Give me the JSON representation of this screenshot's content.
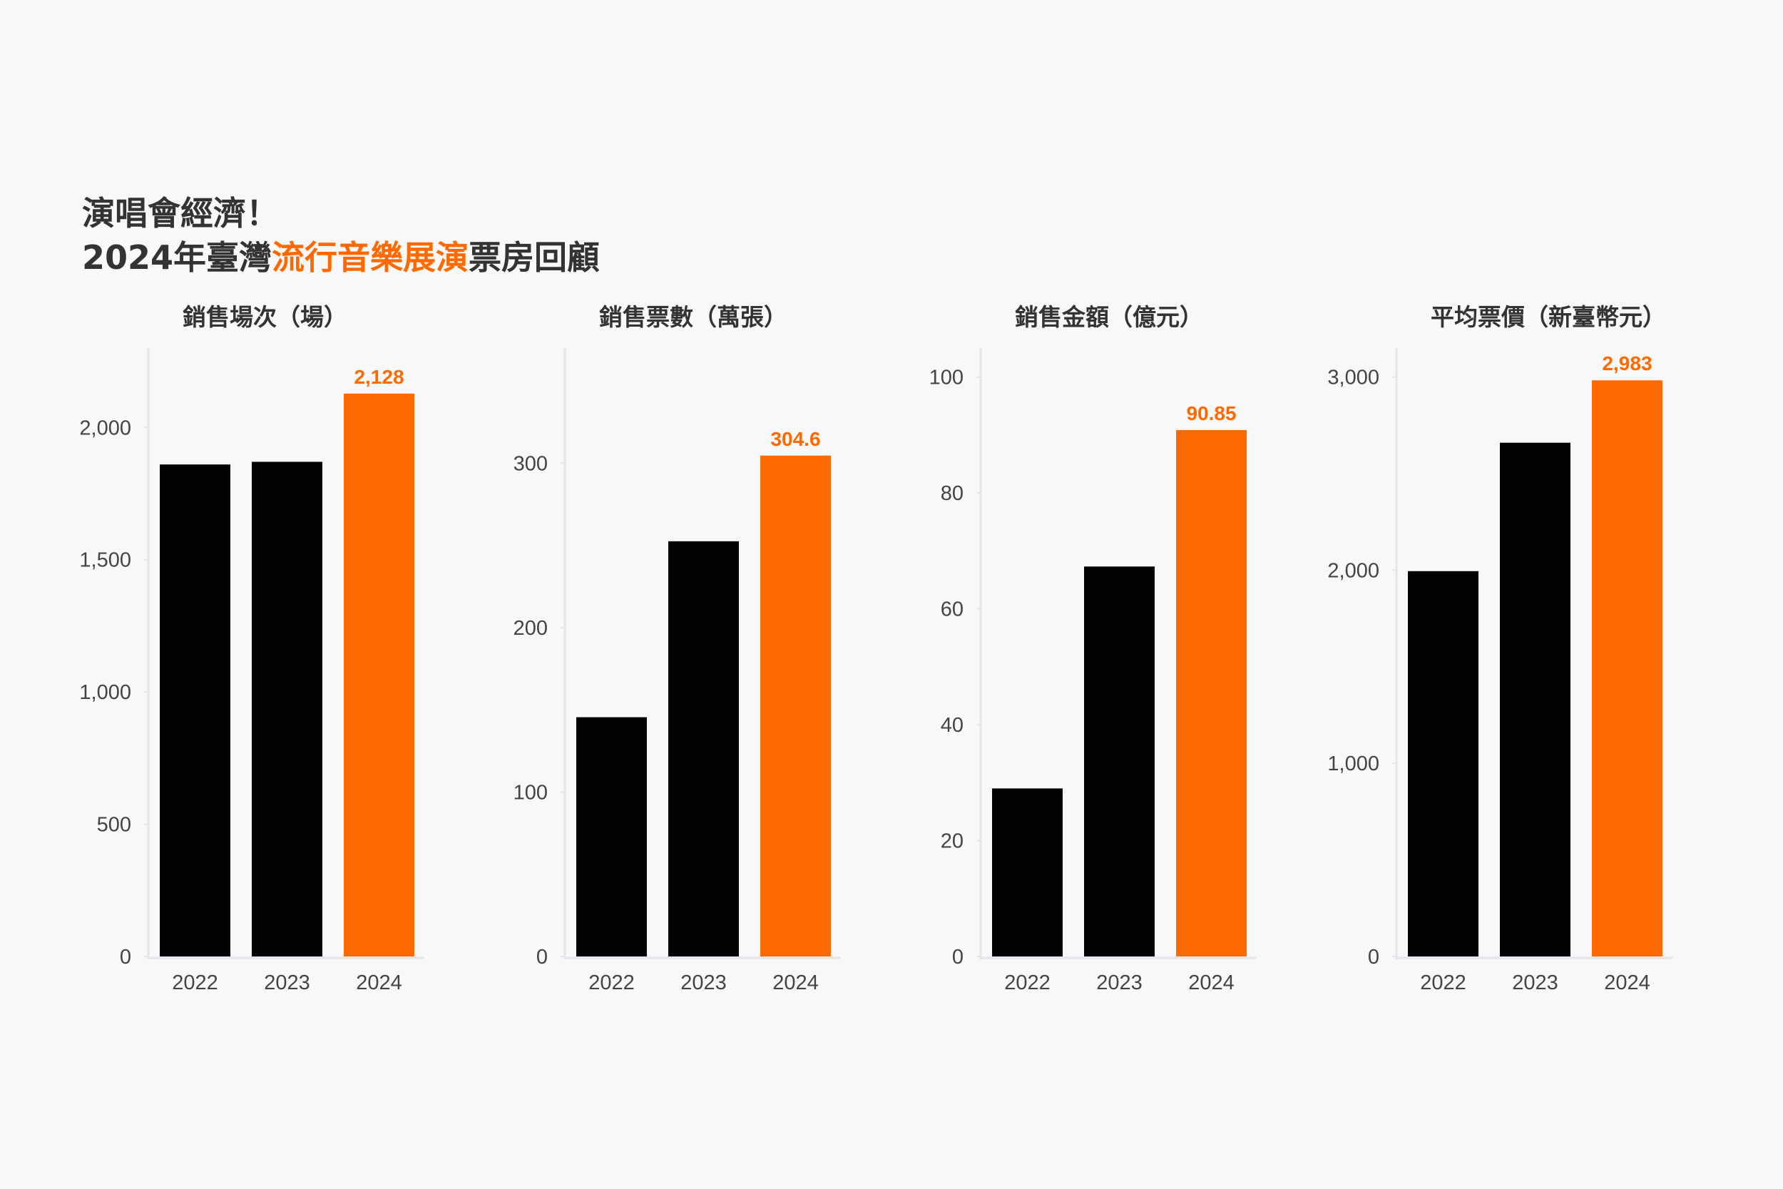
{
  "title": {
    "line1": "演唱會經濟！",
    "line2_prefix": "2024年臺灣",
    "line2_highlight": "流行音樂展演",
    "line2_suffix": "票房回顧"
  },
  "colors": {
    "highlight": "#ff6a00",
    "bar": "#030204",
    "text": "#333333",
    "axis": "#e6e4e8",
    "background": "#f8f7f9"
  },
  "chart_data": [
    {
      "type": "bar",
      "title": "銷售場次（場）",
      "categories": [
        "2022",
        "2023",
        "2024"
      ],
      "values": [
        1860,
        1870,
        2128
      ],
      "ylim": [
        0,
        2300
      ],
      "yticks": [
        0,
        500,
        1000,
        1500,
        2000
      ],
      "ytick_labels": [
        "0",
        "500",
        "1,000",
        "1,500",
        "2,000"
      ],
      "highlight_index": 2,
      "data_label": "2,128"
    },
    {
      "type": "bar",
      "title": "銷售票數（萬張）",
      "categories": [
        "2022",
        "2023",
        "2024"
      ],
      "values": [
        145.5,
        252.5,
        304.6
      ],
      "ylim": [
        0,
        370
      ],
      "yticks": [
        0,
        100,
        200,
        300
      ],
      "ytick_labels": [
        "0",
        "100",
        "200",
        "300"
      ],
      "highlight_index": 2,
      "data_label": "304.6"
    },
    {
      "type": "bar",
      "title": "銷售金額（億元）",
      "categories": [
        "2022",
        "2023",
        "2024"
      ],
      "values": [
        29,
        67.3,
        90.85
      ],
      "ylim": [
        0,
        105
      ],
      "yticks": [
        0,
        20,
        40,
        60,
        80,
        100
      ],
      "ytick_labels": [
        "0",
        "20",
        "40",
        "60",
        "80",
        "100"
      ],
      "highlight_index": 2,
      "data_label": "90.85"
    },
    {
      "type": "bar",
      "title": "平均票價（新臺幣元）",
      "categories": [
        "2022",
        "2023",
        "2024"
      ],
      "values": [
        1995,
        2660,
        2983
      ],
      "ylim": [
        0,
        3150
      ],
      "yticks": [
        0,
        1000,
        2000,
        3000
      ],
      "ytick_labels": [
        "0",
        "1,000",
        "2,000",
        "3,000"
      ],
      "highlight_index": 2,
      "data_label": "2,983"
    }
  ]
}
